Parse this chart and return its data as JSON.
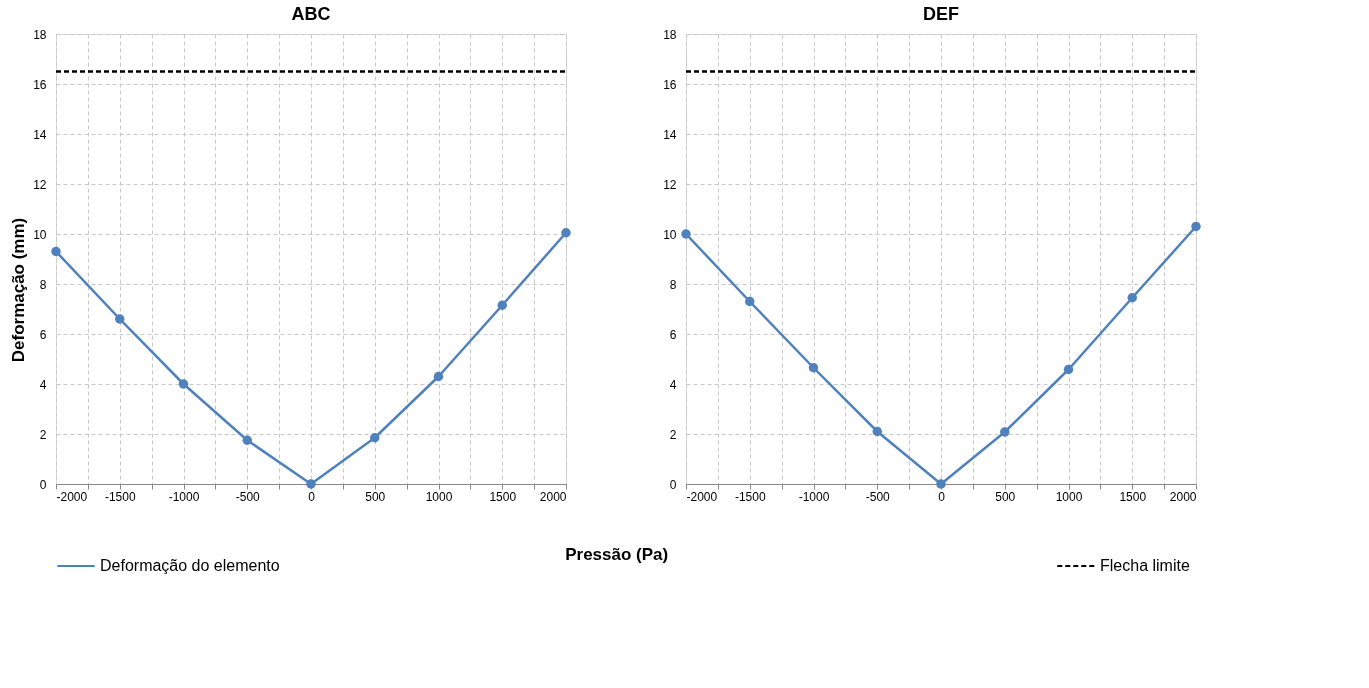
{
  "chart_data": [
    {
      "type": "line",
      "title": "ABC",
      "ylabel": "Deformação (mm)",
      "xlabel": "Pressão (Pa)",
      "x": [
        -2000,
        -1500,
        -1000,
        -500,
        0,
        500,
        1000,
        1500,
        2000
      ],
      "series": [
        {
          "name": "Deformação do elemento",
          "color": "#4f81bd",
          "values": [
            9.3,
            6.6,
            4.0,
            1.75,
            0,
            1.85,
            4.3,
            7.15,
            10.05
          ]
        }
      ],
      "ref_lines": [
        {
          "axis": "y",
          "value": 16.5,
          "color": "#000000",
          "line_style": "dashed"
        }
      ],
      "xlim": [
        -2000,
        2000
      ],
      "ylim": [
        0,
        18
      ],
      "xticks": [
        -2000,
        {
          "value": -1750,
          "label": null
        },
        -1500,
        {
          "value": -1250,
          "label": null
        },
        -1000,
        {
          "value": -750,
          "label": null
        },
        -500,
        {
          "value": -250,
          "label": null
        },
        0,
        {
          "value": 250,
          "label": null
        },
        500,
        {
          "value": 750,
          "label": null
        },
        1000,
        {
          "value": 1250,
          "label": null
        },
        1500,
        {
          "value": 1750,
          "label": null
        },
        2000
      ],
      "yticks": [
        0,
        2,
        4,
        6,
        8,
        10,
        12,
        14,
        16,
        18
      ],
      "grid": true,
      "marker": "circle",
      "line_style": "solid",
      "legend": "bottom left"
    },
    {
      "type": "line",
      "title": "DEF",
      "x": [
        -2000,
        -1500,
        -1000,
        -500,
        0,
        500,
        1000,
        1500,
        2000
      ],
      "series": [
        {
          "color": "#4f81bd",
          "values": [
            10.0,
            7.3,
            4.65,
            2.1,
            0,
            2.08,
            4.58,
            7.45,
            10.3
          ]
        }
      ],
      "ref_lines": [
        {
          "axis": "y",
          "value": 16.5,
          "label": "Flecha limite",
          "color": "#000000",
          "line_style": "dashed"
        }
      ],
      "xlim": [
        -2000,
        2000
      ],
      "ylim": [
        0,
        18
      ],
      "xticks": [
        -2000,
        {
          "value": -1750,
          "label": null
        },
        -1500,
        {
          "value": -1250,
          "label": null
        },
        -1000,
        {
          "value": -750,
          "label": null
        },
        -500,
        {
          "value": -250,
          "label": null
        },
        0,
        {
          "value": 250,
          "label": null
        },
        500,
        {
          "value": 750,
          "label": null
        },
        1000,
        {
          "value": 1250,
          "label": null
        },
        1500,
        {
          "value": 1750,
          "label": null
        },
        2000
      ],
      "yticks": [
        0,
        2,
        4,
        6,
        8,
        10,
        12,
        14,
        16,
        18
      ],
      "grid": true,
      "marker": "circle",
      "line_style": "solid",
      "legend": "bottom right"
    }
  ]
}
